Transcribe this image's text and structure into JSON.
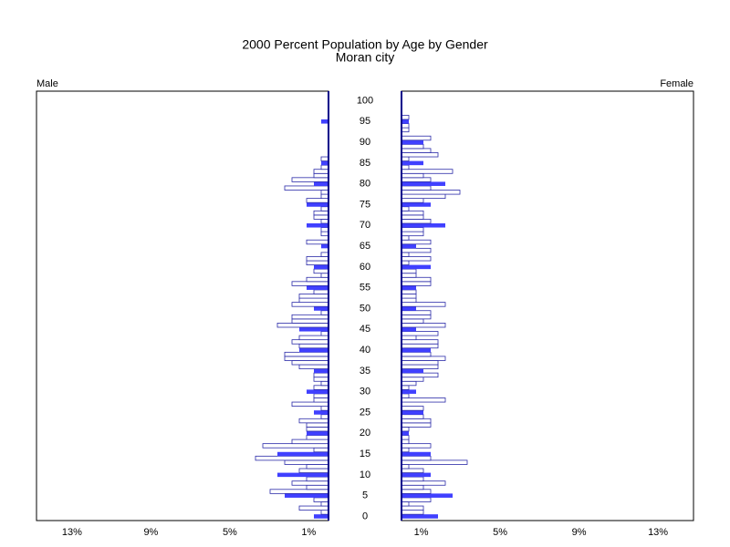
{
  "chart_data": {
    "type": "population-pyramid",
    "title": "2000 Percent Population by Age by Gender",
    "subtitle": "Moran city",
    "y": [
      0,
      1,
      2,
      3,
      4,
      5,
      6,
      7,
      8,
      9,
      10,
      11,
      12,
      13,
      14,
      15,
      16,
      17,
      18,
      19,
      20,
      21,
      22,
      23,
      24,
      25,
      26,
      27,
      28,
      29,
      30,
      31,
      32,
      33,
      34,
      35,
      36,
      37,
      38,
      39,
      40,
      41,
      42,
      43,
      44,
      45,
      46,
      47,
      48,
      49,
      50,
      51,
      52,
      53,
      54,
      55,
      56,
      57,
      58,
      59,
      60,
      61,
      62,
      63,
      64,
      65,
      66,
      67,
      68,
      69,
      70,
      71,
      72,
      73,
      74,
      75,
      76,
      77,
      78,
      79,
      80,
      81,
      82,
      83,
      84,
      85,
      86,
      87,
      88,
      89,
      90,
      91,
      92,
      93,
      94,
      95,
      96
    ],
    "ylim": [
      -1,
      102.3
    ],
    "yticks": [
      0,
      5,
      10,
      15,
      20,
      25,
      30,
      35,
      40,
      45,
      50,
      55,
      60,
      65,
      70,
      75,
      80,
      85,
      90,
      95,
      100
    ],
    "xlim": [
      0,
      14.8
    ],
    "xticks": [
      {
        "value": 1,
        "label": "1%"
      },
      {
        "value": 5,
        "label": "5%"
      },
      {
        "value": 9,
        "label": "9%"
      },
      {
        "value": 13,
        "label": "13%"
      }
    ],
    "highlight_step": 5,
    "series": [
      {
        "name": "Male",
        "side": "left",
        "color": "#4040ff",
        "values": [
          0.74,
          0.37,
          1.48,
          0.37,
          0.74,
          2.22,
          2.96,
          1.11,
          1.85,
          1.11,
          2.59,
          1.48,
          1.11,
          2.22,
          3.7,
          2.59,
          0.74,
          3.33,
          1.85,
          1.11,
          1.11,
          1.11,
          1.11,
          1.48,
          0.37,
          0.74,
          0.37,
          1.85,
          0.74,
          0.74,
          1.11,
          0.74,
          0.37,
          0.74,
          0.74,
          0.74,
          1.48,
          1.85,
          2.22,
          2.22,
          1.48,
          1.48,
          1.85,
          1.48,
          0.37,
          1.48,
          2.59,
          1.85,
          1.85,
          0.37,
          0.74,
          1.85,
          1.48,
          1.48,
          0.74,
          1.11,
          1.85,
          1.11,
          0.37,
          0.74,
          0.74,
          1.11,
          1.11,
          0.37,
          0,
          0.37,
          1.11,
          0,
          0.37,
          0.37,
          1.11,
          0.37,
          0.74,
          0.74,
          0.37,
          1.11,
          1.11,
          0.37,
          0.37,
          2.22,
          0.74,
          1.85,
          0.74,
          0.74,
          0.37,
          0.37,
          0.37,
          0,
          0,
          0,
          0,
          0,
          0,
          0,
          0,
          0.37,
          0
        ]
      },
      {
        "name": "Female",
        "side": "right",
        "color": "#4040ff",
        "values": [
          1.85,
          1.11,
          1.11,
          0.37,
          1.48,
          2.59,
          1.48,
          1.11,
          2.22,
          1.11,
          1.48,
          1.11,
          0.37,
          3.33,
          1.48,
          1.48,
          0.37,
          1.48,
          0.37,
          0.37,
          0.37,
          0.37,
          1.48,
          1.48,
          1.11,
          1.11,
          1.11,
          0,
          2.22,
          0.37,
          0.74,
          0.37,
          0.74,
          1.11,
          1.85,
          1.11,
          1.85,
          1.85,
          2.22,
          1.48,
          1.48,
          1.85,
          1.85,
          0.74,
          1.85,
          0.74,
          2.22,
          1.11,
          1.48,
          1.48,
          0.74,
          2.22,
          0.74,
          0.74,
          0.74,
          0.74,
          1.48,
          1.48,
          0.74,
          0.74,
          1.48,
          0.37,
          1.48,
          0.37,
          1.48,
          0.74,
          1.48,
          0.37,
          1.11,
          1.11,
          2.22,
          1.48,
          1.11,
          1.11,
          0.37,
          1.48,
          1.11,
          2.22,
          2.96,
          1.48,
          2.22,
          1.48,
          1.11,
          2.59,
          0.37,
          1.11,
          0.37,
          1.85,
          1.48,
          1.11,
          1.11,
          1.48,
          0,
          0.37,
          0.37,
          0.37,
          0.37
        ]
      }
    ]
  }
}
